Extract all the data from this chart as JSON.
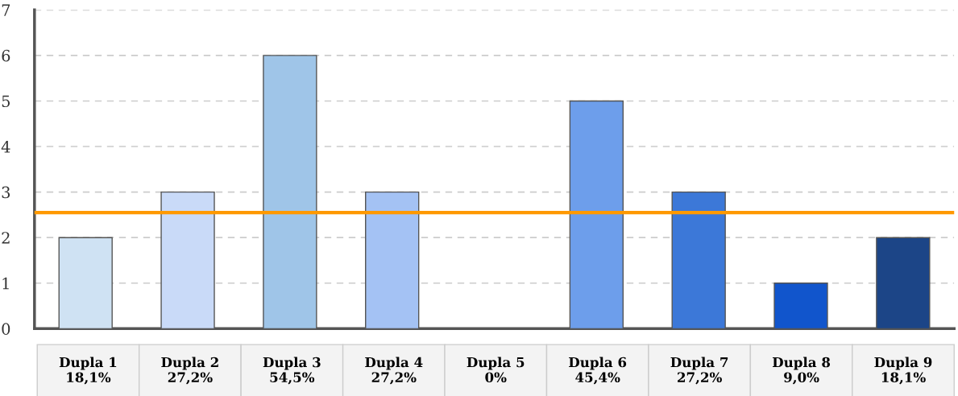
{
  "chart_data": {
    "type": "bar",
    "categories": [
      "Dupla 1\n18,1%",
      "Dupla 2\n27,2%",
      "Dupla 3\n54,5%",
      "Dupla 4\n27,2%",
      "Dupla 5\n0%",
      "Dupla 6\n45,4%",
      "Dupla 7\n27,2%",
      "Dupla 8\n9,0%",
      "Dupla 9\n18,1%"
    ],
    "values": [
      2,
      3,
      6,
      3,
      0,
      5,
      3,
      1,
      2
    ],
    "colors": [
      "#cfe2f3",
      "#c9daf8",
      "#9fc5e8",
      "#a4c2f4",
      null,
      "#6d9eeb",
      "#3c78d8",
      "#1155cc",
      "#1c4587"
    ],
    "ylim": [
      0,
      7
    ],
    "yticks": [
      0,
      1,
      2,
      3,
      4,
      5,
      6,
      7
    ],
    "grid": "y",
    "ref_lines": [
      {
        "axis": "y",
        "value": 2.55,
        "color": "#ff9900",
        "line_style": "solid"
      }
    ]
  }
}
